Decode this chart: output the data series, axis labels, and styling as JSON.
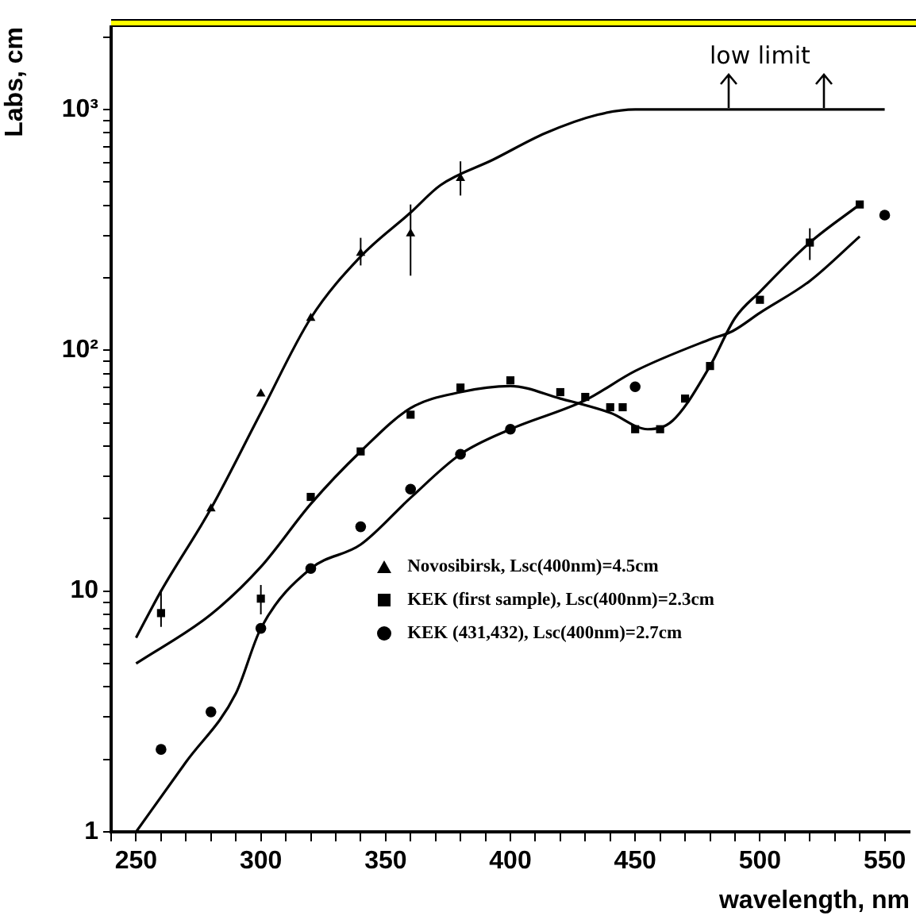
{
  "chart_data": {
    "type": "scatter",
    "xlabel": "wavelength, nm",
    "ylabel": "Labs, cm",
    "log": "y",
    "grid": false,
    "legend": "center",
    "xlim": [
      240,
      560
    ],
    "ylim": [
      1,
      2200
    ],
    "xticks": [
      {
        "value": 240,
        "label": null
      },
      250,
      {
        "value": 260,
        "label": null
      },
      {
        "value": 270,
        "label": null
      },
      {
        "value": 280,
        "label": null
      },
      {
        "value": 290,
        "label": null
      },
      300,
      {
        "value": 310,
        "label": null
      },
      {
        "value": 320,
        "label": null
      },
      {
        "value": 330,
        "label": null
      },
      {
        "value": 340,
        "label": null
      },
      350,
      {
        "value": 360,
        "label": null
      },
      {
        "value": 370,
        "label": null
      },
      {
        "value": 380,
        "label": null
      },
      {
        "value": 390,
        "label": null
      },
      400,
      {
        "value": 410,
        "label": null
      },
      {
        "value": 420,
        "label": null
      },
      {
        "value": 430,
        "label": null
      },
      {
        "value": 440,
        "label": null
      },
      450,
      {
        "value": 460,
        "label": null
      },
      {
        "value": 470,
        "label": null
      },
      {
        "value": 480,
        "label": null
      },
      {
        "value": 490,
        "label": null
      },
      500,
      {
        "value": 510,
        "label": null
      },
      {
        "value": 520,
        "label": null
      },
      {
        "value": 530,
        "label": null
      },
      {
        "value": 540,
        "label": null
      },
      550
    ],
    "yticks": [
      1,
      {
        "value": 2,
        "label": null
      },
      {
        "value": 3,
        "label": null
      },
      {
        "value": 4,
        "label": null
      },
      {
        "value": 5,
        "label": null
      },
      {
        "value": 6,
        "label": null
      },
      {
        "value": 7,
        "label": null
      },
      {
        "value": 8,
        "label": null
      },
      {
        "value": 9,
        "label": null
      },
      10,
      {
        "value": 20,
        "label": null
      },
      {
        "value": 30,
        "label": null
      },
      {
        "value": 40,
        "label": null
      },
      {
        "value": 50,
        "label": null
      },
      {
        "value": 60,
        "label": null
      },
      {
        "value": 70,
        "label": null
      },
      {
        "value": 80,
        "label": null
      },
      {
        "value": 90,
        "label": null
      },
      {
        "value": 100,
        "label": "10²"
      },
      {
        "value": 200,
        "label": null
      },
      {
        "value": 300,
        "label": null
      },
      {
        "value": 400,
        "label": null
      },
      {
        "value": 500,
        "label": null
      },
      {
        "value": 600,
        "label": null
      },
      {
        "value": 700,
        "label": null
      },
      {
        "value": 800,
        "label": null
      },
      {
        "value": 900,
        "label": null
      },
      {
        "value": 1000,
        "label": "10³"
      },
      {
        "value": 2000,
        "label": null
      }
    ],
    "annotations": [
      {
        "text": "low limit",
        "x": 500,
        "y": 1000
      }
    ],
    "series": [
      {
        "name": "Novosibirsk, Lsc(400nm)=4.5cm",
        "color": "#000000",
        "marker": "triangle",
        "x": [
          280,
          300,
          320,
          340,
          360,
          380
        ],
        "values": [
          22,
          66,
          136,
          253,
          305,
          518
        ],
        "errors": [
          null,
          null,
          null,
          [
            225,
            293
          ],
          [
            204,
            403
          ],
          [
            439,
            609
          ]
        ]
      },
      {
        "name": "KEK (first sample), Lsc(400nm)=2.3cm",
        "color": "#000000",
        "marker": "square",
        "x": [
          260,
          300,
          320,
          340,
          360,
          380,
          400,
          420,
          430,
          440,
          445,
          450,
          460,
          470,
          480,
          500,
          520,
          540
        ],
        "values": [
          8.1,
          9.3,
          24.6,
          38,
          54,
          70,
          75,
          67,
          64,
          58,
          58,
          47,
          47,
          63,
          86,
          162,
          280,
          403
        ],
        "errors": [
          [
            7.1,
            10.1
          ],
          [
            8,
            10.6
          ],
          null,
          null,
          null,
          null,
          null,
          null,
          null,
          null,
          null,
          null,
          null,
          null,
          null,
          null,
          [
            237,
            321
          ],
          null
        ]
      },
      {
        "name": "KEK (431,432), Lsc(400nm)=2.7cm",
        "color": "#000000",
        "marker": "circle",
        "x": [
          260,
          280,
          300,
          320,
          340,
          360,
          380,
          400,
          450,
          550
        ],
        "values": [
          2.2,
          3.15,
          7,
          12.4,
          18.5,
          26.5,
          37,
          47,
          70.5,
          364
        ]
      },
      {
        "type": "line",
        "marker": "none",
        "color": "#000000",
        "x": [
          250,
          260,
          280,
          300,
          320,
          340,
          360,
          372,
          393,
          414,
          435,
          450,
          550
        ],
        "values": [
          6.4,
          10,
          22,
          55,
          136,
          245,
          373,
          485,
          618,
          797,
          951,
          1000,
          1000
        ]
      },
      {
        "type": "line",
        "marker": "none",
        "color": "#000000",
        "x": [
          250,
          280,
          300,
          320,
          340,
          360,
          380,
          400,
          420,
          440,
          455,
          465,
          480,
          490,
          500,
          520,
          540
        ],
        "values": [
          5,
          8,
          12.6,
          23,
          38,
          57.5,
          67,
          71,
          63,
          55,
          47,
          51,
          86,
          136,
          175,
          280,
          403
        ]
      },
      {
        "type": "line",
        "marker": "none",
        "color": "#000000",
        "x": [
          250,
          270,
          290,
          300,
          320,
          340,
          360,
          380,
          400,
          430,
          450,
          480,
          489,
          500,
          520,
          540
        ],
        "values": [
          1,
          1.95,
          3.76,
          7,
          12.4,
          15.6,
          24.4,
          37,
          47,
          62,
          82,
          111,
          120,
          143,
          194,
          297
        ]
      }
    ]
  }
}
